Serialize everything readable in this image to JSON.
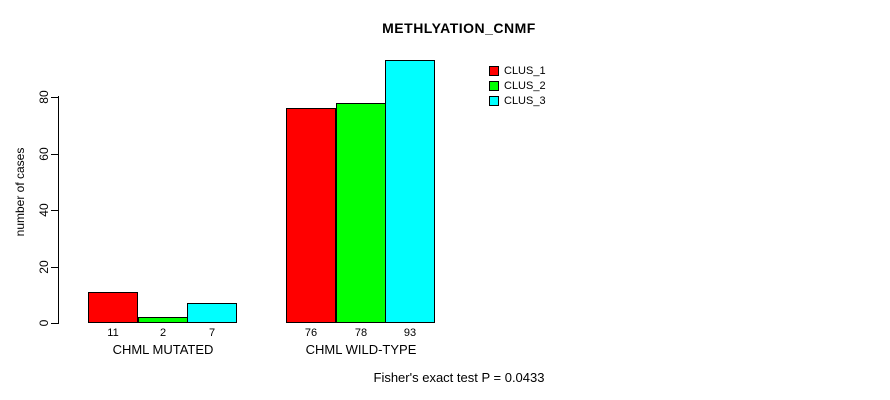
{
  "chart_data": {
    "type": "bar",
    "title": "METHLYATION_CNMF",
    "ylabel": "number of cases",
    "xlabel": "",
    "categories": [
      "CHML MUTATED",
      "CHML WILD-TYPE"
    ],
    "series": [
      {
        "name": "CLUS_1",
        "color": "#ff0000",
        "values": [
          11,
          76
        ]
      },
      {
        "name": "CLUS_2",
        "color": "#00ff00",
        "values": [
          2,
          78
        ]
      },
      {
        "name": "CLUS_3",
        "color": "#00ffff",
        "values": [
          7,
          93
        ]
      }
    ],
    "y_ticks": [
      0,
      20,
      40,
      60,
      80
    ],
    "ylim": [
      0,
      93
    ],
    "bar_value_labels": [
      [
        11,
        2,
        7
      ],
      [
        76,
        78,
        93
      ]
    ],
    "grid": false,
    "legend_position": "top-right",
    "footnote": "Fisher's exact test P = 0.0433"
  },
  "colors": {
    "background": "#ffffff",
    "axis": "#000000",
    "text": "#000000",
    "bar_border": "#000000"
  }
}
